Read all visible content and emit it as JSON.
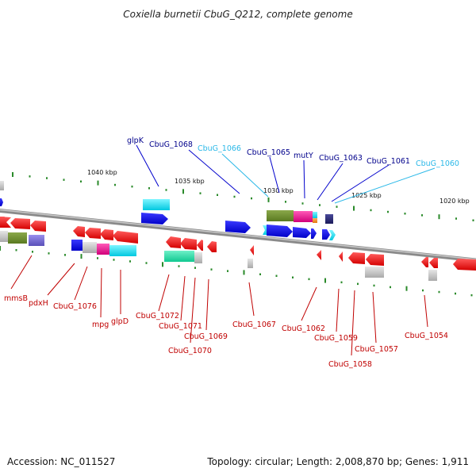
{
  "title": "Coxiella burnetii CbuG_Q212, complete genome",
  "footer": {
    "accession": "Accession: NC_011527",
    "topology": "Topology: circular; Length: 2,008,870 bp; Genes: 1,911"
  },
  "colors": {
    "reverse_gene": "#ff0000",
    "forward_gene": "#0000ee",
    "backbone": "#888888",
    "tick": "#2a8a2a",
    "label_dark_blue": "#00008b",
    "label_light_blue": "#2ab8e8",
    "label_red": "#c00000"
  },
  "scale_labels": [
    {
      "text": "1040 kbp"
    },
    {
      "text": "1035 kbp"
    },
    {
      "text": "1030 kbp"
    },
    {
      "text": "1025 kbp"
    },
    {
      "text": "1020 kbp"
    }
  ],
  "top_labels": [
    {
      "text": "glpK",
      "tone": "dark"
    },
    {
      "text": "CbuG_1068",
      "tone": "dark"
    },
    {
      "text": "CbuG_1066",
      "tone": "light"
    },
    {
      "text": "CbuG_1065",
      "tone": "dark"
    },
    {
      "text": "mutY",
      "tone": "dark"
    },
    {
      "text": "CbuG_1063",
      "tone": "dark"
    },
    {
      "text": "CbuG_1061",
      "tone": "dark"
    },
    {
      "text": "CbuG_1060",
      "tone": "light"
    }
  ],
  "bottom_labels": [
    {
      "text": "mmsB"
    },
    {
      "text": "pdxH"
    },
    {
      "text": "CbuG_1076"
    },
    {
      "text": "mpg"
    },
    {
      "text": "glpD"
    },
    {
      "text": "CbuG_1072"
    },
    {
      "text": "CbuG_1071"
    },
    {
      "text": "CbuG_1070"
    },
    {
      "text": "CbuG_1069"
    },
    {
      "text": "CbuG_1067"
    },
    {
      "text": "CbuG_1062"
    },
    {
      "text": "CbuG_1059"
    },
    {
      "text": "CbuG_1058"
    },
    {
      "text": "CbuG_1057"
    },
    {
      "text": "CbuG_1054"
    }
  ]
}
